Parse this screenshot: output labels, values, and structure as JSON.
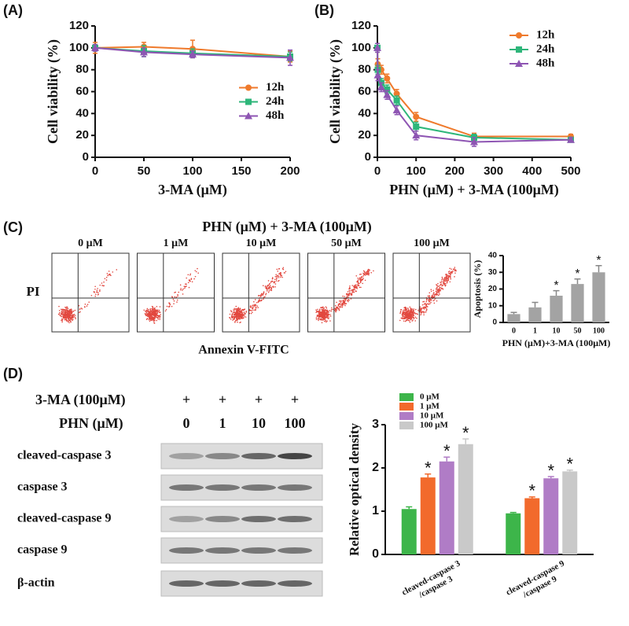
{
  "panel_labels": [
    "(A)",
    "(B)",
    "(C)",
    "(D)"
  ],
  "chart_data": [
    {
      "type": "line",
      "xlabel": "3-MA (μM)",
      "ylabel": "Cell viability (%)",
      "x": [
        0,
        50,
        100,
        200
      ],
      "xlim": [
        0,
        200
      ],
      "xticks": [
        0,
        50,
        100,
        150,
        200
      ],
      "ylim": [
        0,
        120
      ],
      "yticks": [
        0,
        20,
        40,
        60,
        80,
        100,
        120
      ],
      "legend": "center right",
      "series": [
        {
          "name": "12h",
          "color": "#ef7a2c",
          "marker": "circle",
          "values": [
            100,
            101,
            99,
            92
          ],
          "errors": [
            5,
            4,
            8,
            5
          ]
        },
        {
          "name": "24h",
          "color": "#2eb67a",
          "marker": "square",
          "values": [
            100,
            97,
            95,
            92
          ],
          "errors": [
            3,
            5,
            4,
            4
          ]
        },
        {
          "name": "48h",
          "color": "#8e55b3",
          "marker": "triangle",
          "values": [
            100,
            96,
            94,
            91
          ],
          "errors": [
            3,
            4,
            3,
            7
          ]
        }
      ]
    },
    {
      "type": "line",
      "xlabel": "PHN (μM) + 3-MA (100μM)",
      "ylabel": "Cell viability (%)",
      "x": [
        0,
        1,
        10,
        25,
        50,
        100,
        250,
        500
      ],
      "xlim": [
        0,
        500
      ],
      "xticks": [
        0,
        100,
        200,
        300,
        400,
        500
      ],
      "ylim": [
        0,
        120
      ],
      "yticks": [
        0,
        20,
        40,
        60,
        80,
        100,
        120
      ],
      "legend": "upper right",
      "series": [
        {
          "name": "12h",
          "color": "#ef7a2c",
          "marker": "circle",
          "values": [
            100,
            85,
            80,
            72,
            58,
            37,
            19,
            19
          ],
          "errors": [
            4,
            5,
            4,
            4,
            4,
            4,
            3,
            2
          ]
        },
        {
          "name": "24h",
          "color": "#2eb67a",
          "marker": "square",
          "values": [
            100,
            80,
            68,
            62,
            52,
            28,
            18,
            16
          ],
          "errors": [
            4,
            4,
            4,
            4,
            4,
            4,
            3,
            2
          ]
        },
        {
          "name": "48h",
          "color": "#8e55b3",
          "marker": "triangle",
          "values": [
            100,
            75,
            64,
            57,
            43,
            20,
            14,
            16
          ],
          "errors": [
            4,
            5,
            4,
            4,
            4,
            4,
            4,
            2
          ]
        }
      ]
    },
    {
      "type": "bar",
      "ylabel": "Apoptosis (%)",
      "xlabel": "PHN (μM)+3-MA (100μM)",
      "categories": [
        "0",
        "1",
        "10",
        "50",
        "100"
      ],
      "values": [
        5,
        9,
        16,
        23,
        30
      ],
      "errors": [
        1,
        3,
        3,
        3,
        4
      ],
      "annotations": [
        null,
        null,
        "*",
        "*",
        "*"
      ],
      "color": "#a3a3a3",
      "ylim": [
        0,
        40
      ],
      "yticks": [
        0,
        10,
        20,
        30,
        40
      ]
    },
    {
      "type": "bar",
      "ylabel": "Relative optical density",
      "categories": [
        [
          "cleaved-caspase 3",
          "/caspase 3"
        ],
        [
          "cleaved-caspase 9",
          "/caspase 9"
        ]
      ],
      "ylim": [
        0,
        3
      ],
      "yticks": [
        0,
        1,
        2,
        3
      ],
      "legend": "upper left",
      "series": [
        {
          "name": "0 μM",
          "color": "#3db54a",
          "values": [
            1.05,
            0.95
          ],
          "errors": [
            0.05,
            0.02
          ],
          "annotations": [
            null,
            null
          ]
        },
        {
          "name": "1 μM",
          "color": "#f26a2c",
          "values": [
            1.78,
            1.3
          ],
          "errors": [
            0.08,
            0.03
          ],
          "annotations": [
            "*",
            "*"
          ]
        },
        {
          "name": "10 μM",
          "color": "#b07cc6",
          "values": [
            2.15,
            1.76
          ],
          "errors": [
            0.1,
            0.04
          ],
          "annotations": [
            "*",
            "*"
          ]
        },
        {
          "name": "100 μM",
          "color": "#c9c9c9",
          "values": [
            2.55,
            1.92
          ],
          "errors": [
            0.12,
            0.03
          ],
          "annotations": [
            "*",
            "*"
          ]
        }
      ]
    }
  ],
  "flow": {
    "title": "PHN (μM) + 3-MA (100μM)",
    "plots": [
      "0 μM",
      "1 μM",
      "10 μM",
      "50 μM",
      "100 μM"
    ],
    "ylabel": "PI",
    "xlabel": "Annexin V-FITC"
  },
  "blot": {
    "treatments": [
      {
        "label": "3-MA (100μM)",
        "values": [
          "+",
          "+",
          "+",
          "+"
        ]
      },
      {
        "label": "PHN (μM)",
        "values": [
          "0",
          "1",
          "10",
          "100"
        ]
      }
    ],
    "bands": [
      "cleaved-caspase 3",
      "caspase 3",
      "cleaved-caspase 9",
      "caspase 9",
      "β-actin"
    ]
  }
}
